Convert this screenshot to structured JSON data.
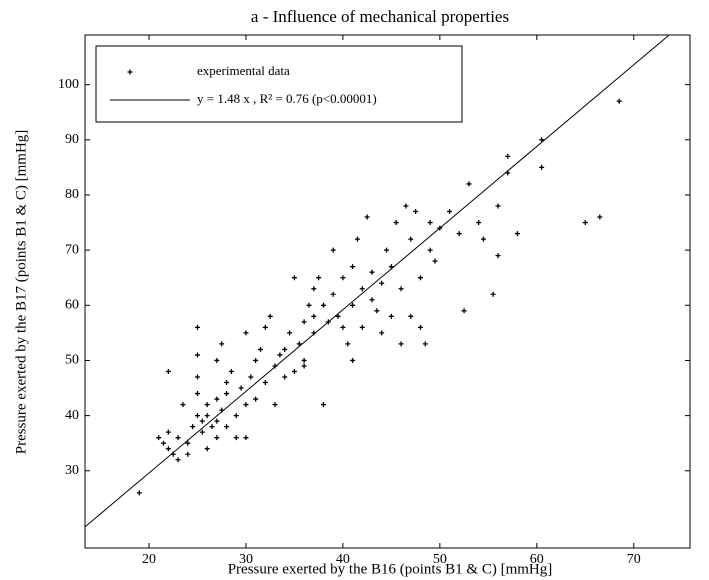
{
  "chart_data": {
    "type": "scatter",
    "title": "a  -  Influence of mechanical properties",
    "x_label": "Pressure exerted by the B16 (points B1 & C) [mmHg]",
    "y_label": "Pressure exerted by the B17 (points B1 & C) [mmHg]",
    "xlim": [
      13.4,
      75.8
    ],
    "ylim": [
      16,
      109
    ],
    "xticks": [
      20,
      30,
      40,
      50,
      60,
      70
    ],
    "yticks": [
      30,
      40,
      50,
      60,
      70,
      80,
      90,
      100
    ],
    "legend": "upper left",
    "series": [
      {
        "name": "experimental data",
        "color": "#000000",
        "x": [
          19,
          21,
          21.5,
          22,
          22,
          22.5,
          22,
          23,
          23,
          23.5,
          24,
          24,
          24.5,
          25,
          25,
          25,
          25,
          25,
          25.5,
          25.5,
          26,
          26,
          26,
          26.5,
          27,
          27,
          27,
          27.5,
          27,
          27.5,
          28,
          28,
          28,
          28.5,
          29,
          29,
          29.5,
          30,
          30,
          30,
          30.5,
          31,
          31,
          31.5,
          32,
          32,
          32.5,
          33,
          33,
          33.5,
          34,
          34,
          34.5,
          35,
          35,
          35.5,
          36,
          36,
          36,
          36.5,
          37,
          37,
          37,
          37.5,
          38,
          38,
          38.5,
          39,
          39,
          39.5,
          40,
          40,
          40.5,
          41,
          41,
          41,
          41.5,
          42,
          42,
          42.5,
          43,
          43,
          43.5,
          44,
          44,
          44.5,
          45,
          45,
          45.5,
          46,
          46,
          46.5,
          47,
          47,
          47.5,
          48,
          48,
          48.5,
          49,
          49,
          49.5,
          50,
          51,
          52,
          52.5,
          53,
          54,
          54.5,
          55.5,
          56,
          56,
          57,
          57,
          58,
          60.5,
          60.5,
          65,
          66.5,
          68.5
        ],
        "y": [
          26,
          36,
          35,
          34,
          48,
          33,
          37,
          36,
          32,
          42,
          35,
          33,
          38,
          40,
          56,
          51,
          47,
          44,
          39,
          37,
          40,
          34,
          42,
          38,
          43,
          39,
          50,
          53,
          36,
          41,
          44,
          38,
          46,
          48,
          40,
          36,
          45,
          36,
          42,
          55,
          47,
          50,
          43,
          52,
          56,
          46,
          58,
          49,
          42,
          51,
          47,
          52,
          55,
          48,
          65,
          53,
          50,
          57,
          49,
          60,
          63,
          55,
          58,
          65,
          42,
          60,
          57,
          70,
          62,
          58,
          65,
          56,
          53,
          67,
          60,
          50,
          72,
          63,
          56,
          76,
          66,
          61,
          59,
          64,
          55,
          70,
          67,
          58,
          75,
          63,
          53,
          78,
          58,
          72,
          77,
          56,
          65,
          53,
          70,
          75,
          68,
          74,
          77,
          73,
          59,
          82,
          75,
          72,
          62,
          69,
          78,
          84,
          87,
          73,
          90,
          85,
          75,
          76,
          97
        ]
      }
    ],
    "fit": {
      "name": "y = 1.48 x , R² = 0.76 (p<0.00001)",
      "color": "#000000",
      "slope": 1.48
    }
  }
}
